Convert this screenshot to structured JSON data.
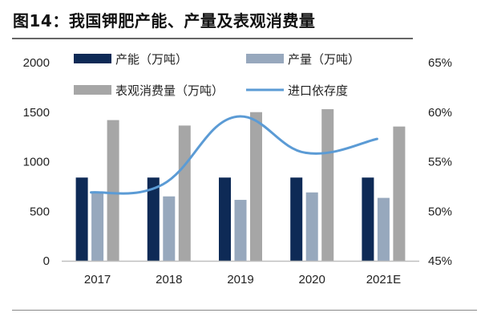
{
  "title": "图14：我国钾肥产能、产量及表观消费量",
  "chart_data": {
    "type": "bar",
    "title": "图14：我国钾肥产能、产量及表观消费量",
    "categories": [
      "2017",
      "2018",
      "2019",
      "2020",
      "2021E"
    ],
    "series": [
      {
        "name": "产能（万吨）",
        "type": "bar",
        "axis": "left",
        "color": "#0e2a56",
        "values": [
          840,
          840,
          840,
          840,
          840
        ]
      },
      {
        "name": "产量（万吨）",
        "type": "bar",
        "axis": "left",
        "color": "#97a8bd",
        "values": [
          700,
          650,
          615,
          690,
          635
        ]
      },
      {
        "name": "表观消费量（万吨）",
        "type": "bar",
        "axis": "left",
        "color": "#a6a6a6",
        "values": [
          1420,
          1365,
          1500,
          1530,
          1355
        ]
      },
      {
        "name": "进口依存度",
        "type": "line",
        "axis": "right",
        "color": "#5b9bd5",
        "values": [
          51.9,
          52.7,
          59.5,
          55.9,
          57.3
        ]
      }
    ],
    "y_left": {
      "ylim": [
        0,
        2000
      ],
      "ticks": [
        "0",
        "500",
        "1000",
        "1500",
        "2000"
      ]
    },
    "y_right": {
      "ylim": [
        45,
        65
      ],
      "ticks": [
        "45%",
        "50%",
        "55%",
        "60%",
        "65%"
      ]
    },
    "grid": false,
    "legend": "top"
  }
}
